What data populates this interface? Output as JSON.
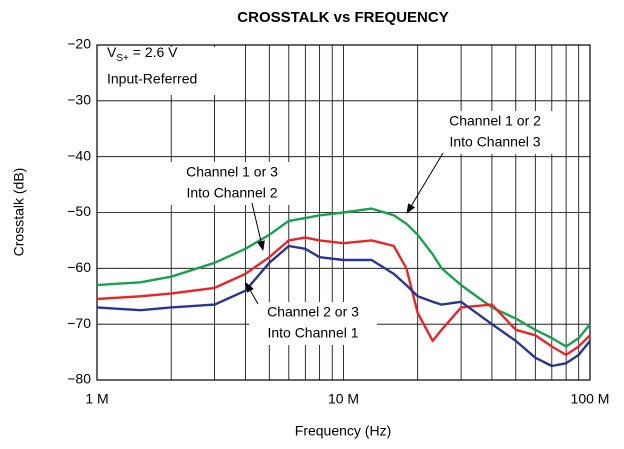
{
  "chart_data": {
    "type": "line",
    "title": "CROSSTALK vs FREQUENCY",
    "x_label": "Frequency (Hz)",
    "y_label": "Crosstalk (dB)",
    "xscale": "log",
    "grid": true,
    "xlim": [
      1000000,
      100000000
    ],
    "xticks": [
      {
        "value": 1000000,
        "label": "1 M"
      },
      {
        "value": 10000000,
        "label": "10 M"
      },
      {
        "value": 100000000,
        "label": "100 M"
      }
    ],
    "xminorticks": [
      2000000,
      3000000,
      4000000,
      5000000,
      6000000,
      7000000,
      8000000,
      9000000,
      20000000,
      30000000,
      40000000,
      50000000,
      60000000,
      70000000,
      80000000,
      90000000
    ],
    "ylim": [
      -80,
      -20
    ],
    "yticks": [
      {
        "value": -80,
        "label": "−80"
      },
      {
        "value": -70,
        "label": "−70"
      },
      {
        "value": -60,
        "label": "−60"
      },
      {
        "value": -50,
        "label": "−50"
      },
      {
        "value": -40,
        "label": "−40"
      },
      {
        "value": -30,
        "label": "−30"
      },
      {
        "value": -20,
        "label": "−20"
      }
    ],
    "conditions": {
      "symbol": "V",
      "subscript": "S+",
      "rest": " = 2.6 V",
      "note": "Input-Referred"
    },
    "x": [
      1000000,
      1500000,
      2000000,
      3000000,
      4000000,
      5000000,
      6000000,
      7000000,
      8000000,
      10000000,
      13000000,
      16000000,
      18000000,
      20000000,
      23000000,
      25000000,
      30000000,
      40000000,
      50000000,
      60000000,
      70000000,
      80000000,
      90000000,
      100000000
    ],
    "series": [
      {
        "label_lines": [
          "Channel 1 or 2",
          "Into Channel 3"
        ],
        "color": "#1aa050",
        "values": [
          -63,
          -62.5,
          -61.5,
          -59,
          -56.5,
          -54,
          -51.5,
          -51,
          -50.5,
          -50,
          -49.3,
          -50.5,
          -52,
          -54,
          -57.5,
          -60,
          -63,
          -67,
          -69,
          -71,
          -72.5,
          -74,
          -72.5,
          -70
        ]
      },
      {
        "label_lines": [
          "Channel 1 or 3",
          "Into Channel 2"
        ],
        "color": "#e8262a",
        "values": [
          -65.5,
          -65,
          -64.5,
          -63.5,
          -61,
          -58,
          -55,
          -54.5,
          -55,
          -55.5,
          -55,
          -56,
          -60,
          -68,
          -73,
          -71,
          -67,
          -66.5,
          -71,
          -72,
          -74,
          -75.5,
          -74,
          -72
        ]
      },
      {
        "label_lines": [
          "Channel 2 or 3",
          "Into Channel 1"
        ],
        "color": "#2a3590",
        "values": [
          -67,
          -67.5,
          -67,
          -66.5,
          -64,
          -59,
          -56,
          -56.5,
          -58,
          -58.5,
          -58.5,
          -61,
          -63,
          -65,
          -66,
          -66.5,
          -66,
          -70,
          -73,
          -76,
          -77.5,
          -77,
          -75.5,
          -73
        ]
      }
    ]
  }
}
